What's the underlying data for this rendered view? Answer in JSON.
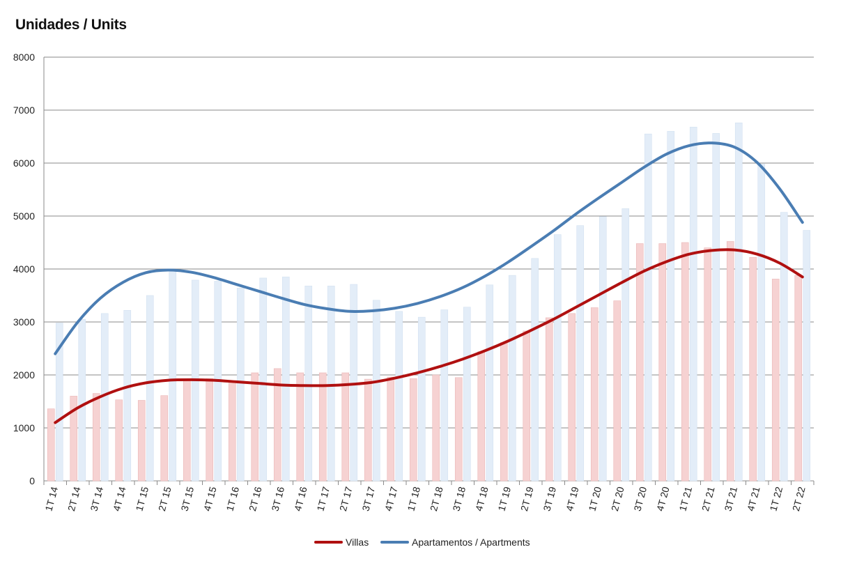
{
  "chart_data": {
    "type": "bar",
    "title": "Unidades  / Units",
    "xlabel": "",
    "ylabel": "",
    "ylim": [
      0,
      8000
    ],
    "yticks": [
      0,
      1000,
      2000,
      3000,
      4000,
      5000,
      6000,
      7000,
      8000
    ],
    "grid": true,
    "legend_position": "bottom",
    "categories": [
      "1T 14",
      "2T 14",
      "3T 14",
      "4T 14",
      "1T 15",
      "2T 15",
      "3T 15",
      "4T 15",
      "1T 16",
      "2T 16",
      "3T 16",
      "4T 16",
      "1T 17",
      "2T 17",
      "3T 17",
      "4T 17",
      "1T 18",
      "2T 18",
      "3T 18",
      "4T 18",
      "1T 19",
      "2T 19",
      "3T 19",
      "4T 19",
      "1T 20",
      "2T 20",
      "3T 20",
      "4T 20",
      "1T 21",
      "2T 21",
      "3T 21",
      "4T 21",
      "1T 22",
      "2T 22"
    ],
    "series": [
      {
        "name": "Villas",
        "bar_color": "#f6d2d2",
        "bar_edge": "#eab7b7",
        "trend_color": "#b01010",
        "values": [
          1360,
          1600,
          1650,
          1530,
          1520,
          1610,
          1930,
          1930,
          1860,
          2040,
          2120,
          2040,
          2040,
          2040,
          1920,
          1960,
          1930,
          2000,
          1950,
          2440,
          2610,
          2830,
          3080,
          3160,
          3270,
          3400,
          4480,
          4480,
          4500,
          4400,
          4520,
          4220,
          3810,
          3880
        ],
        "trend": [
          1100,
          1380,
          1590,
          1750,
          1850,
          1900,
          1910,
          1900,
          1870,
          1840,
          1810,
          1800,
          1800,
          1820,
          1860,
          1940,
          2040,
          2160,
          2300,
          2460,
          2640,
          2840,
          3050,
          3280,
          3510,
          3740,
          3960,
          4140,
          4280,
          4350,
          4360,
          4280,
          4110,
          3850
        ]
      },
      {
        "name": "Apartamentos / Apartments",
        "bar_color": "#e3edf8",
        "bar_edge": "#d3e1f0",
        "trend_color": "#4a7db3",
        "values": [
          2980,
          3050,
          3160,
          3220,
          3500,
          3960,
          3790,
          3770,
          3640,
          3830,
          3850,
          3680,
          3680,
          3710,
          3410,
          3200,
          3090,
          3230,
          3280,
          3700,
          3880,
          4200,
          4650,
          4820,
          4990,
          5140,
          6550,
          6600,
          6680,
          6560,
          6760,
          5980,
          5070,
          4730
        ],
        "trend": [
          2400,
          3000,
          3450,
          3750,
          3930,
          3980,
          3940,
          3840,
          3710,
          3580,
          3450,
          3330,
          3250,
          3200,
          3210,
          3260,
          3350,
          3480,
          3650,
          3870,
          4130,
          4420,
          4720,
          5040,
          5340,
          5630,
          5920,
          6170,
          6330,
          6380,
          6300,
          6010,
          5510,
          4880
        ]
      }
    ]
  }
}
